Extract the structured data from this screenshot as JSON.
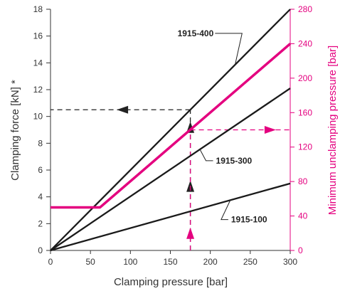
{
  "chart_data": {
    "type": "line",
    "xlabel": "Clamping pressure [bar]",
    "ylabel": "Clamping force [kN] *",
    "ylabel_right": "Minimum unclamping pressure [bar]",
    "xlim": [
      0,
      300
    ],
    "ylim": [
      0,
      18
    ],
    "ylim_right": [
      0,
      280
    ],
    "x_ticks": [
      "0",
      "50",
      "100",
      "150",
      "200",
      "250",
      "300"
    ],
    "y_ticks": [
      "0",
      "2",
      "4",
      "6",
      "8",
      "10",
      "12",
      "14",
      "16",
      "18"
    ],
    "y_right_ticks": [
      "0",
      "40",
      "80",
      "120",
      "160",
      "200",
      "240",
      "280"
    ],
    "grid": false,
    "colors": {
      "black_series": "#1a1a1a",
      "magenta_series": "#e4007f"
    },
    "series": [
      {
        "name": "1915-400",
        "axis": "left",
        "x": [
          0,
          300
        ],
        "y": [
          0,
          18
        ]
      },
      {
        "name": "1915-300",
        "axis": "left",
        "x": [
          0,
          300
        ],
        "y": [
          0,
          12.1
        ]
      },
      {
        "name": "1915-100",
        "axis": "left",
        "x": [
          0,
          300
        ],
        "y": [
          0,
          5
        ]
      },
      {
        "axis": "right",
        "x": [
          0,
          62,
          300
        ],
        "y": [
          50,
          50,
          240
        ]
      }
    ],
    "annotations": [
      {
        "text": "1915-400",
        "series": 0,
        "at_x": 231,
        "label_x": 197,
        "label_y": 16.2
      },
      {
        "text": "1915-300",
        "series": 1,
        "at_x": 187,
        "label_x": 207,
        "label_y": 6.7
      },
      {
        "text": "1915-100",
        "series": 2,
        "at_x": 225,
        "label_x": 226,
        "label_y": 2.3
      }
    ],
    "guides": [
      {
        "color": "black",
        "from": [
          175,
          0
        ],
        "to": [
          175,
          10.5
        ],
        "arrow_at": [
          [
            175,
            4.8
          ],
          [
            175,
            9.2
          ]
        ]
      },
      {
        "color": "black",
        "from": [
          175,
          10.5
        ],
        "to": [
          0,
          10.5
        ],
        "arrow_at": [
          [
            90,
            10.5
          ]
        ]
      },
      {
        "color": "magenta",
        "from": [
          175,
          0
        ],
        "to": [
          175,
          140
        ],
        "axis": "right",
        "arrow_at": [
          [
            175,
            20
          ]
        ]
      },
      {
        "color": "magenta",
        "from": [
          175,
          140
        ],
        "to": [
          300,
          140
        ],
        "axis": "right",
        "arrow_at": [
          [
            275,
            140
          ]
        ]
      }
    ]
  }
}
